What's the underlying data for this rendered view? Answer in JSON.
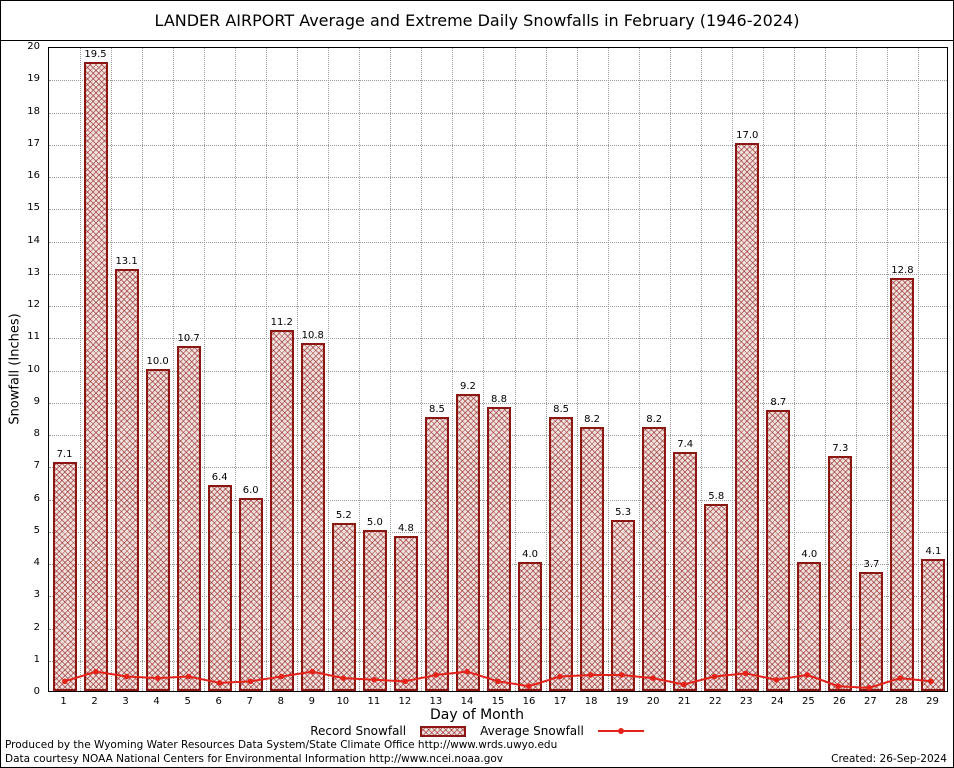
{
  "title": "LANDER AIRPORT Average and Extreme Daily Snowfalls in February (1946-2024)",
  "axes": {
    "x_title": "Day of Month",
    "y_title": "Snowfall (Inches)"
  },
  "legend": {
    "record_label": "Record Snowfall",
    "average_label": "Average Snowfall"
  },
  "footer": {
    "line1": "Produced by the Wyoming Water Resources Data System/State Climate Office http://www.wrds.uwyo.edu",
    "line2": "Data courtesy NOAA National Centers for Environmental Information http://www.ncei.noaa.gov",
    "created": "Created: 26-Sep-2024"
  },
  "colors": {
    "bar_edge": "#8b1713",
    "bar_fill": "#f1e2e0",
    "avg_line": "#e3221a",
    "grid": "#999999"
  },
  "chart_data": {
    "type": "bar",
    "title": "LANDER AIRPORT Average and Extreme Daily Snowfalls in February (1946-2024)",
    "xlabel": "Day of Month",
    "ylabel": "Snowfall (Inches)",
    "ylim": [
      0,
      20
    ],
    "ytick_step": 1,
    "grid": true,
    "legend_position": "bottom",
    "categories": [
      1,
      2,
      3,
      4,
      5,
      6,
      7,
      8,
      9,
      10,
      11,
      12,
      13,
      14,
      15,
      16,
      17,
      18,
      19,
      20,
      21,
      22,
      23,
      24,
      25,
      26,
      27,
      28,
      29
    ],
    "series": [
      {
        "name": "Record Snowfall",
        "type": "bar",
        "values": [
          7.1,
          19.5,
          13.1,
          10.0,
          10.7,
          6.4,
          6.0,
          11.2,
          10.8,
          5.2,
          5.0,
          4.8,
          8.5,
          9.2,
          8.8,
          4.0,
          8.5,
          8.2,
          5.3,
          8.2,
          7.4,
          5.8,
          17.0,
          8.7,
          4.0,
          7.3,
          3.7,
          12.8,
          4.1
        ]
      },
      {
        "name": "Average Snowfall",
        "type": "line",
        "values": [
          0.3,
          0.6,
          0.45,
          0.4,
          0.45,
          0.25,
          0.3,
          0.45,
          0.6,
          0.4,
          0.35,
          0.3,
          0.5,
          0.6,
          0.3,
          0.15,
          0.45,
          0.5,
          0.5,
          0.4,
          0.2,
          0.45,
          0.55,
          0.35,
          0.5,
          0.15,
          0.1,
          0.4,
          0.3
        ]
      }
    ]
  }
}
